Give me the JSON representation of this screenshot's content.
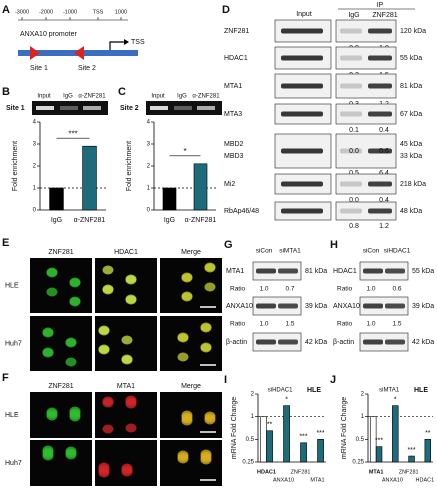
{
  "panel_labels": [
    "A",
    "B",
    "C",
    "D",
    "E",
    "F",
    "G",
    "H",
    "I",
    "J"
  ],
  "panel_a": {
    "axis_labels": [
      "-3000",
      "-2000",
      "-1000",
      "TSS",
      "1000"
    ],
    "promoter": "ANXA10 promoter",
    "tss": "TSS",
    "sites": [
      "Site 1",
      "Site 2"
    ]
  },
  "panel_b_gel": {
    "site": "Site 1",
    "lanes": [
      "Input",
      "IgG",
      "α-ZNF281"
    ]
  },
  "panel_c_gel": {
    "site": "Site 2",
    "lanes": [
      "Input",
      "IgG",
      "α-ZNF281"
    ]
  },
  "panel_d": {
    "columns": [
      "Input",
      "IgG",
      "ZNF281"
    ],
    "ip": "IP",
    "rows": [
      {
        "labels": [
          "ZNF281"
        ],
        "sizes": [
          "120 kDa"
        ],
        "ratios": [
          [
            "0.0",
            "1.0"
          ]
        ]
      },
      {
        "labels": [
          "HDAC1"
        ],
        "sizes": [
          "55 kDa"
        ],
        "ratios": [
          [
            "0.3",
            "1.5"
          ]
        ]
      },
      {
        "labels": [
          "MTA1"
        ],
        "sizes": [
          "81 kDa"
        ],
        "ratios": [
          [
            "0.3",
            "1.2"
          ]
        ]
      },
      {
        "labels": [
          "MTA3"
        ],
        "sizes": [
          "67 kDa"
        ],
        "ratios": [
          [
            "0.1",
            "0.4"
          ]
        ]
      },
      {
        "labels": [
          "MBD2",
          "MBD3"
        ],
        "sizes": [
          "45 kDa",
          "33 kDa"
        ],
        "ratios": [
          [
            "0.0",
            "0.6"
          ],
          [
            "0.5",
            "6.4"
          ]
        ]
      },
      {
        "labels": [
          "Mi2"
        ],
        "sizes": [
          "218 kDa"
        ],
        "ratios": [
          [
            "0.0",
            "0.4"
          ]
        ]
      },
      {
        "labels": [
          "RbAp46/48"
        ],
        "sizes": [
          "48 kDa"
        ],
        "ratios": [
          [
            "0.8",
            "1.2"
          ]
        ]
      }
    ]
  },
  "panel_e": {
    "columns": [
      "ZNF281",
      "HDAC1",
      "Merge"
    ],
    "rows": [
      "HLE",
      "Huh7"
    ]
  },
  "panel_f": {
    "columns": [
      "ZNF281",
      "MTA1",
      "Merge"
    ],
    "rows": [
      "HLE",
      "Huh7"
    ]
  },
  "panel_g": {
    "lanes": [
      "siCon",
      "siMTA1"
    ],
    "blots": [
      {
        "label": "MTA1",
        "size": "81 kDa",
        "ratio_label": "Ratio",
        "ratios": [
          "1.0",
          "0.7"
        ]
      },
      {
        "label": "ANXA10",
        "size": "39 kDa",
        "ratio_label": "Ratio",
        "ratios": [
          "1.0",
          "1.5"
        ]
      },
      {
        "label": "β-actin",
        "size": "42 kDa"
      }
    ]
  },
  "panel_h": {
    "lanes": [
      "siCon",
      "siHDAC1"
    ],
    "blots": [
      {
        "label": "HDAC1",
        "size": "55 kDa",
        "ratio_label": "Ratio",
        "ratios": [
          "1.0",
          "0.6"
        ]
      },
      {
        "label": "ANXA10",
        "size": "39 kDa",
        "ratio_label": "Ratio",
        "ratios": [
          "1.0",
          "1.5"
        ]
      },
      {
        "label": "β-actin",
        "size": "42 kDa"
      }
    ]
  },
  "chart_data": [
    {
      "type": "bar",
      "ylabel": "Fold enrichment",
      "categories": [
        "IgG",
        "α-ZNF281"
      ],
      "series": [
        {
          "values": [
            1,
            2.9
          ],
          "colors": [
            "#000000",
            "#1e6b7b"
          ]
        }
      ],
      "ylim": [
        0,
        4
      ],
      "yticks": [
        0,
        1,
        2,
        3,
        4
      ],
      "reference_line": 1,
      "significance": [
        null,
        "***"
      ]
    },
    {
      "type": "bar",
      "ylabel": "Fold enrichment",
      "categories": [
        "IgG",
        "α-ZNF281"
      ],
      "series": [
        {
          "values": [
            1,
            2.1
          ],
          "colors": [
            "#000000",
            "#1e6b7b"
          ]
        }
      ],
      "ylim": [
        0,
        4
      ],
      "yticks": [
        0,
        1,
        2,
        3,
        4
      ],
      "reference_line": 1,
      "significance": [
        null,
        "*"
      ]
    },
    {
      "type": "bar",
      "ylabel": "mRNA Fold Change",
      "categories": [
        "HDAC1",
        "ANXA10",
        "ZNF281",
        "MTA1"
      ],
      "series": [
        {
          "color": "#ffffff",
          "values": [
            1,
            null,
            null,
            null
          ]
        },
        {
          "name": "siHDAC1",
          "color": "#1e6b7b",
          "values": [
            0.65,
            1.4,
            0.45,
            0.5
          ]
        }
      ],
      "ylim": [
        0.25,
        2
      ],
      "yticks": [
        0.25,
        0.5,
        1,
        2
      ],
      "log_scale": true,
      "reference_line": 1,
      "significance": [
        "**",
        "*",
        "***",
        "***"
      ],
      "annotations": [
        "HLE"
      ]
    },
    {
      "type": "bar",
      "ylabel": "mRNA Fold Change",
      "categories": [
        "MTA1",
        "ANXA10",
        "ZNF281",
        "HDAC1"
      ],
      "series": [
        {
          "color": "#ffffff",
          "values": [
            1,
            null,
            null,
            null
          ]
        },
        {
          "name": "siMTA1",
          "color": "#1e6b7b",
          "values": [
            0.4,
            1.4,
            0.3,
            0.5
          ]
        }
      ],
      "ylim": [
        0.25,
        2
      ],
      "yticks": [
        0.25,
        0.5,
        1,
        2
      ],
      "log_scale": true,
      "reference_line": 1,
      "significance": [
        "***",
        "*",
        "***",
        "**"
      ],
      "annotations": [
        "HLE"
      ]
    }
  ]
}
